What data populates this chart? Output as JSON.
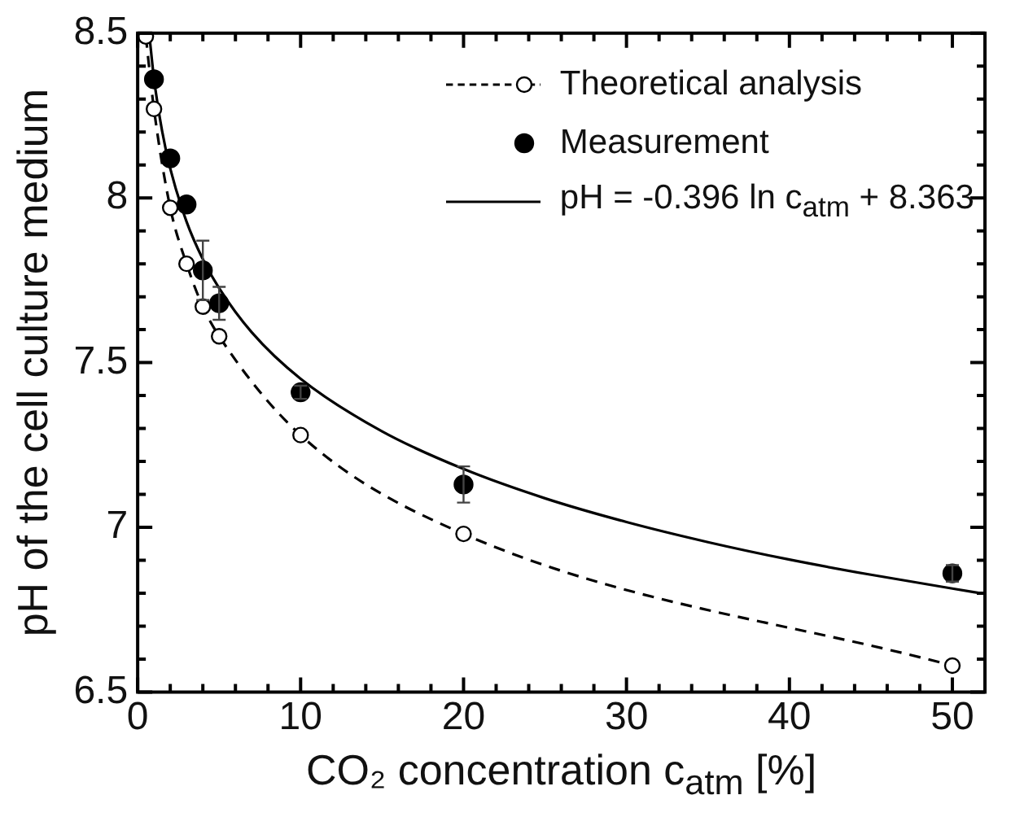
{
  "chart_data": {
    "type": "line",
    "xlabel": "CO₂ concentration c$_{atm}$ [%]",
    "ylabel": "pH of the cell culture medium",
    "xlim": [
      0,
      52
    ],
    "ylim": [
      6.5,
      8.5
    ],
    "xticks": [
      0,
      {
        "value": 2,
        "label": null
      },
      {
        "value": 4,
        "label": null
      },
      {
        "value": 6,
        "label": null
      },
      {
        "value": 8,
        "label": null
      },
      10,
      {
        "value": 12,
        "label": null
      },
      {
        "value": 14,
        "label": null
      },
      {
        "value": 16,
        "label": null
      },
      {
        "value": 18,
        "label": null
      },
      20,
      {
        "value": 22,
        "label": null
      },
      {
        "value": 24,
        "label": null
      },
      {
        "value": 26,
        "label": null
      },
      {
        "value": 28,
        "label": null
      },
      30,
      {
        "value": 32,
        "label": null
      },
      {
        "value": 34,
        "label": null
      },
      {
        "value": 36,
        "label": null
      },
      {
        "value": 38,
        "label": null
      },
      40,
      {
        "value": 42,
        "label": null
      },
      {
        "value": 44,
        "label": null
      },
      {
        "value": 46,
        "label": null
      },
      {
        "value": 48,
        "label": null
      },
      50
    ],
    "yticks": [
      6.5,
      {
        "value": 6.6,
        "label": null
      },
      {
        "value": 6.7,
        "label": null
      },
      {
        "value": 6.8,
        "label": null
      },
      {
        "value": 6.9,
        "label": null
      },
      7,
      {
        "value": 7.1,
        "label": null
      },
      {
        "value": 7.2,
        "label": null
      },
      {
        "value": 7.3,
        "label": null
      },
      {
        "value": 7.4,
        "label": null
      },
      7.5,
      {
        "value": 7.6,
        "label": null
      },
      {
        "value": 7.7,
        "label": null
      },
      {
        "value": 7.8,
        "label": null
      },
      {
        "value": 7.9,
        "label": null
      },
      8,
      {
        "value": 8.1,
        "label": null
      },
      {
        "value": 8.2,
        "label": null
      },
      {
        "value": 8.3,
        "label": null
      },
      {
        "value": 8.4,
        "label": null
      },
      8.5
    ],
    "grid": false,
    "legend": "top right",
    "series": [
      {
        "name": "Theoretical analysis",
        "type": "line",
        "color": "#000000",
        "line_style": "dashed",
        "marker": "circle",
        "x": [
          0.5,
          1,
          2,
          3,
          4,
          5,
          10,
          20,
          50
        ],
        "values": [
          8.49,
          8.27,
          7.97,
          7.8,
          7.67,
          7.58,
          7.28,
          6.98,
          6.58
        ]
      },
      {
        "name": "Measurement",
        "type": "scatter",
        "color": "#000000",
        "marker": "circle",
        "x": [
          1,
          2,
          3,
          4,
          5,
          10,
          20,
          50
        ],
        "values": [
          8.36,
          8.12,
          7.98,
          7.78,
          7.68,
          7.41,
          7.13,
          6.86
        ],
        "errors": [
          null,
          null,
          null,
          0.09,
          0.05,
          0.02,
          0.055,
          0.025
        ]
      },
      {
        "name": "pH = -0.396 ln c$_{atm}$ + 8.363",
        "type": "line",
        "color": "#000000",
        "line_style": "solid",
        "marker": "none",
        "x": [
          0.72,
          1,
          1.5,
          2,
          3,
          4,
          5,
          7,
          10,
          15,
          20,
          25,
          30,
          35,
          40,
          45,
          50,
          52
        ],
        "values": [
          8.493,
          8.363,
          8.203,
          8.089,
          7.928,
          7.814,
          7.726,
          7.592,
          7.451,
          7.291,
          7.177,
          7.088,
          7.016,
          6.955,
          6.902,
          6.856,
          6.814,
          6.798
        ]
      }
    ]
  }
}
